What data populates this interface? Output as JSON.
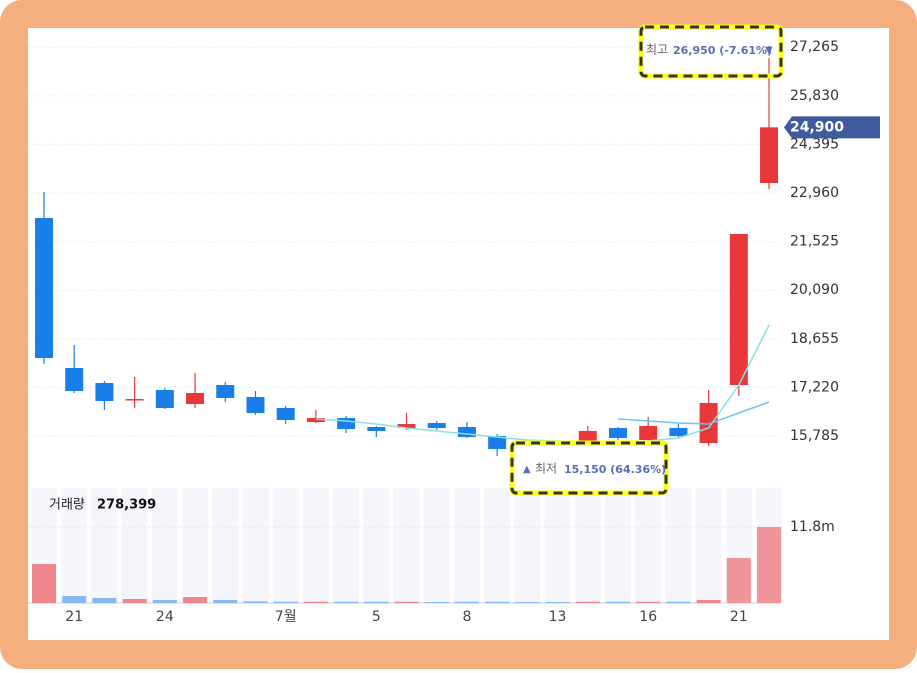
{
  "chart_data": {
    "type": "candlestick",
    "categories": [
      null,
      "21",
      null,
      null,
      "24",
      null,
      null,
      null,
      "7월",
      null,
      null,
      "5",
      null,
      null,
      "8",
      null,
      null,
      "13",
      null,
      null,
      "16",
      null,
      null,
      "21",
      null
    ],
    "open": [
      22222,
      17793,
      17350,
      16848,
      17143,
      16730,
      17291,
      16937,
      16612,
      16198,
      16316,
      16051,
      16021,
      16169,
      16051,
      15785,
      15401,
      15372,
      15637,
      16021,
      15667,
      16021,
      15578,
      17291,
      23256
    ],
    "high": [
      22990,
      18472,
      17409,
      17527,
      17202,
      17645,
      17380,
      17114,
      16671,
      16553,
      16375,
      16080,
      16464,
      16228,
      16198,
      15844,
      15460,
      15430,
      16080,
      16051,
      16346,
      16139,
      17143,
      21750,
      26950
    ],
    "low": [
      17911,
      17055,
      16553,
      16612,
      16582,
      16612,
      16789,
      16405,
      16139,
      16169,
      15874,
      15755,
      15962,
      15962,
      15726,
      15194,
      15150,
      15282,
      15549,
      15667,
      15490,
      15726,
      15490,
      16966,
      23079
    ],
    "close": [
      18088,
      17114,
      16819,
      16878,
      16612,
      17055,
      16907,
      16464,
      16257,
      16316,
      15992,
      15933,
      16139,
      16021,
      15755,
      15401,
      15312,
      15312,
      15933,
      15726,
      16080,
      15785,
      16760,
      21750,
      24900
    ],
    "up_color": "#e8383b",
    "down_color": "#1a7ee8",
    "series": [
      {
        "color": "#86e3df",
        "values": [
          null,
          null,
          null,
          null,
          null,
          null,
          null,
          null,
          null,
          16287,
          16228,
          16139,
          16021,
          15933,
          15844,
          15755,
          15667,
          15637,
          15608,
          15608,
          15637,
          15726,
          16021,
          17291,
          19063
        ]
      },
      {
        "color": "#6cc4f2",
        "values": [
          null,
          null,
          null,
          null,
          null,
          null,
          null,
          null,
          null,
          null,
          null,
          null,
          null,
          null,
          null,
          null,
          null,
          null,
          null,
          16287,
          16228,
          16169,
          16139,
          16464,
          16789
        ]
      }
    ],
    "ylim": [
      14486,
      27833
    ],
    "yticks": [
      {
        "value": 15785,
        "label": "15,785"
      },
      {
        "value": 17220,
        "label": "17,220"
      },
      {
        "value": 18655,
        "label": "18,655"
      },
      {
        "value": 20090,
        "label": "20,090"
      },
      {
        "value": 21525,
        "label": "21,525"
      },
      {
        "value": 22960,
        "label": "22,960"
      },
      {
        "value": 24395,
        "label": "24,395"
      },
      {
        "value": 25830,
        "label": "25,830"
      },
      {
        "value": 27265,
        "label": "27,265"
      }
    ],
    "grid": true,
    "current_price": {
      "value": 24900,
      "label": "24,900"
    },
    "high_annotation": {
      "label": "최고",
      "text": "26,950 (-7.61%)",
      "arrow": "▼"
    },
    "low_annotation": {
      "arrow": "▲",
      "label": "최저",
      "text": "15,150 (64.36%)"
    },
    "volume": {
      "label": "거래량",
      "current": "278,399",
      "values": [
        6060000,
        1090000,
        780000,
        620000,
        470000,
        930000,
        470000,
        250000,
        200000,
        200000,
        200000,
        200000,
        200000,
        150000,
        200000,
        200000,
        150000,
        150000,
        200000,
        200000,
        200000,
        200000,
        470000,
        6990000,
        11800000
      ],
      "colors": [
        "#ef868c",
        "#86b8ef",
        "#86b8ef",
        "#ef868c",
        "#86b8ef",
        "#ef868c",
        "#86b8ef",
        "#86b8ef",
        "#86b8ef",
        "#ef868c",
        "#86b8ef",
        "#86b8ef",
        "#ef868c",
        "#86b8ef",
        "#86b8ef",
        "#86b8ef",
        "#86b8ef",
        "#86b8ef",
        "#ef868c",
        "#86b8ef",
        "#ef868c",
        "#86b8ef",
        "#ef868c",
        "#ef9499",
        "#ef9499"
      ],
      "ylim": [
        0,
        17850000
      ],
      "yticks": [
        {
          "value": 11800000,
          "label": "11.8m"
        }
      ]
    }
  }
}
